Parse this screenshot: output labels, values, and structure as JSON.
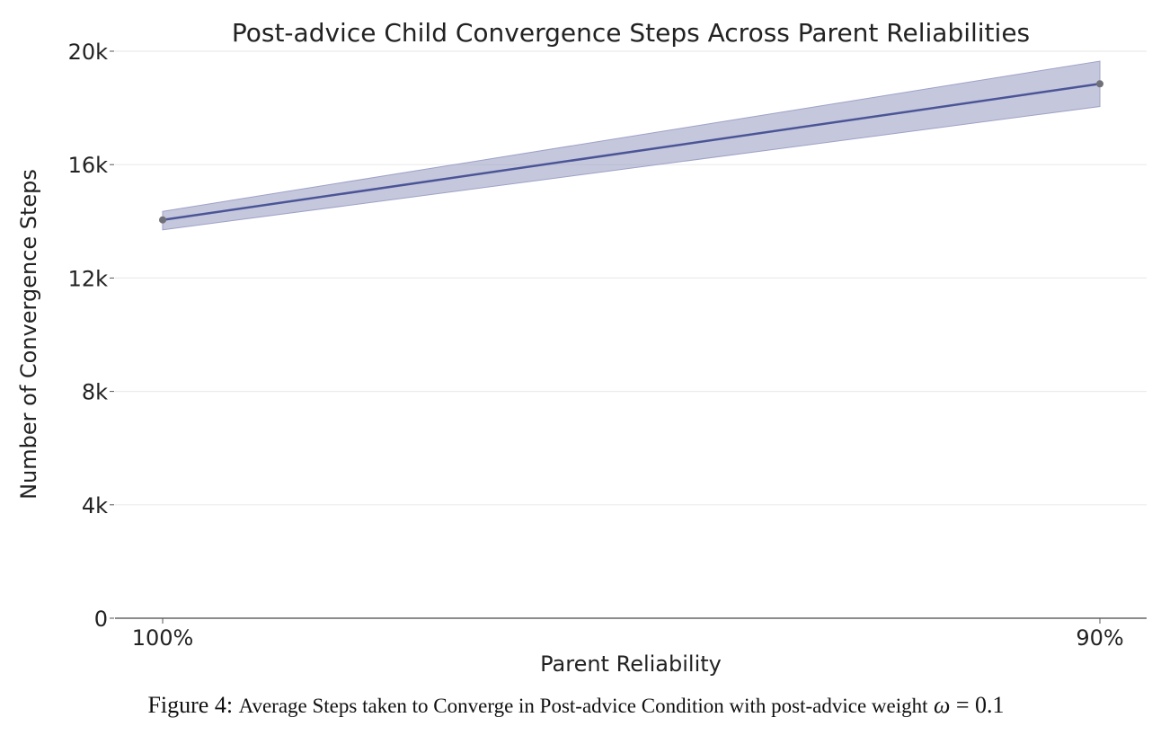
{
  "chart_data": {
    "type": "line",
    "title": "Post-advice Child Convergence Steps Across Parent Reliabilities",
    "xlabel": "Parent Reliability",
    "ylabel": "Number of Convergence Steps",
    "categories": [
      "100%",
      "90%"
    ],
    "series": [
      {
        "values": [
          14050,
          18850
        ],
        "ci_lower": [
          13700,
          18050
        ],
        "ci_upper": [
          14350,
          19650
        ]
      }
    ],
    "ylim": [
      0,
      20000
    ],
    "yticks": [
      0,
      4000,
      8000,
      12000,
      16000,
      20000
    ],
    "ytick_labels": [
      "0",
      "4k",
      "8k",
      "12k",
      "16k",
      "20k"
    ],
    "grid": "horizontal",
    "colors": {
      "line": "#4b5596",
      "band": "#9ea2c6",
      "marker": "#707078",
      "grid": "#ebebeb",
      "axis": "#555555"
    }
  },
  "caption": {
    "label": "Figure 4:",
    "text": "Average Steps taken to Converge in Post-advice Condition with post-advice weight",
    "math_symbol": "ω",
    "math_rest": " = 0.1"
  }
}
